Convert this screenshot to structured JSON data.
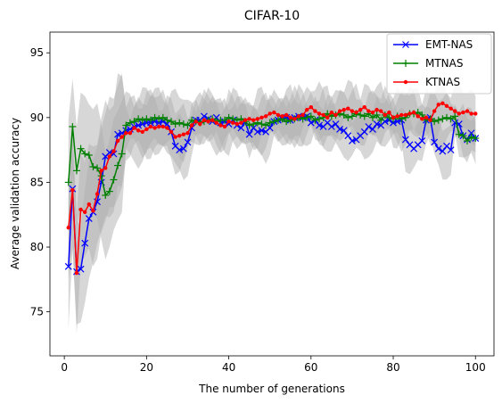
{
  "chart_data": {
    "type": "line",
    "title": "CIFAR-10",
    "xlabel": "The number of generations",
    "ylabel": "Average validation accuracy",
    "xlim": [
      -3.5,
      104.5
    ],
    "ylim": [
      71.6,
      96.6
    ],
    "xticks": [
      0,
      20,
      40,
      60,
      80,
      100
    ],
    "yticks": [
      75,
      80,
      85,
      90,
      95
    ],
    "grid": false,
    "legend": {
      "position": "top-right"
    },
    "band_color": "#b0b0b0",
    "x": [
      1,
      2,
      3,
      4,
      5,
      6,
      7,
      8,
      9,
      10,
      11,
      12,
      13,
      14,
      15,
      16,
      17,
      18,
      19,
      20,
      21,
      22,
      23,
      24,
      25,
      26,
      27,
      28,
      29,
      30,
      31,
      32,
      33,
      34,
      35,
      36,
      37,
      38,
      39,
      40,
      41,
      42,
      43,
      44,
      45,
      46,
      47,
      48,
      49,
      50,
      51,
      52,
      53,
      54,
      55,
      56,
      57,
      58,
      59,
      60,
      61,
      62,
      63,
      64,
      65,
      66,
      67,
      68,
      69,
      70,
      71,
      72,
      73,
      74,
      75,
      76,
      77,
      78,
      79,
      80,
      81,
      82,
      83,
      84,
      85,
      86,
      87,
      88,
      89,
      90,
      91,
      92,
      93,
      94,
      95,
      96,
      97,
      98,
      99,
      100
    ],
    "series": [
      {
        "name": "EMT-NAS",
        "color": "#0000ff",
        "marker": "x",
        "values": [
          78.5,
          84.5,
          78.1,
          78.3,
          80.3,
          82.2,
          82.7,
          83.5,
          85,
          87,
          87.3,
          87.2,
          88.7,
          88.8,
          89,
          89.1,
          89.3,
          89.4,
          89.5,
          89.6,
          89.6,
          89.7,
          89.6,
          89.7,
          89.5,
          88.9,
          87.8,
          87.5,
          87.6,
          88.1,
          89.2,
          89.8,
          89.8,
          90.1,
          89.9,
          89.7,
          90,
          89.6,
          89.7,
          89.5,
          89.8,
          89.4,
          89.2,
          89.7,
          88.7,
          89.2,
          88.9,
          89,
          88.9,
          89.2,
          89.7,
          89.8,
          89.9,
          90,
          89.8,
          90,
          90.1,
          90,
          90.1,
          89.6,
          89.8,
          89.4,
          89.3,
          89.6,
          89.3,
          89.5,
          89.1,
          89,
          88.6,
          88.2,
          88.3,
          88.6,
          88.9,
          89.3,
          89.1,
          89.5,
          89.4,
          89.7,
          89.8,
          89.6,
          89.7,
          89.8,
          88.3,
          87.9,
          87.6,
          87.9,
          88.2,
          89.8,
          90,
          88.1,
          87.6,
          87.4,
          87.8,
          87.5,
          89.6,
          89.5,
          88.6,
          88.3,
          88.8,
          88.4
        ]
      },
      {
        "name": "MTNAS",
        "color": "#008000",
        "marker": "+",
        "values": [
          85,
          89.3,
          85.9,
          87.6,
          87.2,
          87.1,
          86.2,
          86.1,
          85.5,
          84,
          84.3,
          85.2,
          86.3,
          87.2,
          89.4,
          89.6,
          89.7,
          89.9,
          89.8,
          89.9,
          89.8,
          90,
          89.9,
          90,
          89.8,
          89.7,
          89.5,
          89.6,
          89.5,
          89.4,
          89.8,
          89.7,
          89.6,
          89.7,
          89.8,
          89.9,
          89.7,
          89.8,
          89.8,
          90,
          89.9,
          89.8,
          89.9,
          89.7,
          89.4,
          89.5,
          89.6,
          89.5,
          89.4,
          89.6,
          89.7,
          89.8,
          89.9,
          89.7,
          89.8,
          89.9,
          90,
          89.9,
          90,
          90.1,
          89.8,
          89.9,
          90,
          90.3,
          90.1,
          90.2,
          90.3,
          90.2,
          90,
          90.1,
          90.3,
          90.2,
          90.1,
          90.3,
          90,
          90.2,
          89.8,
          90.2,
          90,
          89.9,
          90.1,
          89.9,
          90,
          90.3,
          90.3,
          90.4,
          90.2,
          89.8,
          89.9,
          89.7,
          89.8,
          89.9,
          90,
          89.9,
          90.1,
          88.7,
          88.6,
          88.2,
          88.5,
          88.4
        ]
      },
      {
        "name": "KTNAS",
        "color": "#ff0000",
        "marker": "o",
        "values": [
          81.5,
          84.4,
          78,
          82.9,
          82.7,
          83.3,
          82.8,
          84.1,
          85.9,
          86.1,
          87,
          87.4,
          88.2,
          88.5,
          88.8,
          88.8,
          89.2,
          89,
          88.9,
          89.1,
          89.3,
          89.2,
          89.3,
          89.3,
          89.2,
          88.9,
          88.5,
          88.6,
          88.7,
          88.8,
          89.4,
          89.7,
          89.5,
          89.8,
          89.7,
          89.8,
          89.6,
          89.4,
          89.3,
          89.7,
          89.6,
          89.5,
          89.6,
          89.8,
          89.9,
          89.8,
          89.9,
          90,
          90.1,
          90.3,
          90.4,
          90.2,
          90.1,
          90.2,
          90,
          89.9,
          90.1,
          90.2,
          90.6,
          90.8,
          90.5,
          90.3,
          90.2,
          90,
          90.4,
          90.2,
          90.5,
          90.6,
          90.7,
          90.5,
          90.4,
          90.6,
          90.8,
          90.5,
          90.4,
          90.6,
          90.5,
          90.2,
          90.4,
          90,
          90.1,
          90.2,
          90.2,
          90.3,
          90.4,
          90.1,
          89.9,
          90,
          89.8,
          90.5,
          91,
          91.1,
          90.9,
          90.7,
          90.5,
          90.3,
          90.4,
          90.5,
          90.3,
          90.3
        ]
      }
    ]
  }
}
